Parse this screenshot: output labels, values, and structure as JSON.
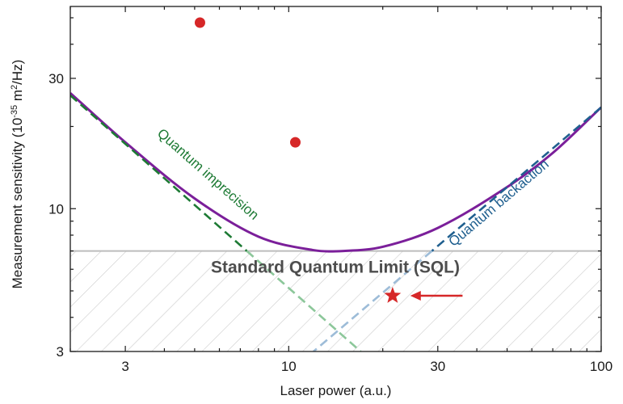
{
  "chart_data": {
    "type": "line",
    "xscale": "log",
    "yscale": "log",
    "xlim": [
      2.0,
      100
    ],
    "ylim": [
      3,
      55
    ],
    "xlabel": "Laser power (a.u.)",
    "ylabel": "Measurement sensitivity (10^-35 m²/Hz)",
    "ylabel_parts": {
      "main": "Measurement sensitivity (10",
      "sup1": "-35",
      "mid": " m",
      "sup2": "2",
      "tail": "/Hz)"
    },
    "x_ticks": [
      {
        "value": 3,
        "label": "3"
      },
      {
        "value": 10,
        "label": "10"
      },
      {
        "value": 30,
        "label": "30"
      },
      {
        "value": 100,
        "label": "100"
      }
    ],
    "y_ticks": [
      {
        "value": 3,
        "label": "3"
      },
      {
        "value": 10,
        "label": "10"
      },
      {
        "value": 30,
        "label": "30"
      }
    ],
    "series": [
      {
        "name": "Total sensitivity",
        "style": "solid",
        "color": "#7b1f9a",
        "x": [
          2.0,
          3.0,
          5.0,
          8.0,
          12.0,
          15.0,
          20.0,
          30.0,
          50.0,
          70.0,
          100.0
        ],
        "y": [
          26.5,
          17.5,
          10.9,
          7.9,
          7.05,
          7.0,
          7.25,
          8.5,
          12.0,
          16.0,
          23.5
        ]
      },
      {
        "name": "Quantum imprecision",
        "style": "dashed",
        "color": "#1d7a34",
        "color_below_sql": "#8cc79a",
        "x": [
          2.0,
          17.0
        ],
        "y": [
          26.0,
          3.0
        ]
      },
      {
        "name": "Quantum backaction",
        "style": "dashed",
        "color": "#1f5f8f",
        "color_below_sql": "#9dbcd8",
        "x": [
          12.0,
          100.0
        ],
        "y": [
          3.0,
          23.5
        ]
      }
    ],
    "points": [
      {
        "name": "data point 1",
        "x": 5.2,
        "y": 48,
        "marker": "circle",
        "color": "#d62728"
      },
      {
        "name": "data point 2",
        "x": 10.5,
        "y": 17.5,
        "marker": "circle",
        "color": "#d62728"
      },
      {
        "name": "star point",
        "x": 21.5,
        "y": 4.8,
        "marker": "star",
        "color": "#d62728"
      }
    ],
    "sql": {
      "y": 7.0,
      "label": "Standard Quantum Limit (SQL)",
      "line_color": "#bdbdbd",
      "hatch_color": "#cccccc"
    },
    "annotations": [
      {
        "text": "Quantum imprecision",
        "color": "#1d7a34",
        "x": 5.4,
        "y": 13.0
      },
      {
        "text": "Quantum backaction",
        "color": "#1f5f8f",
        "x": 48,
        "y": 10.2
      }
    ],
    "arrow": {
      "from_x": 36,
      "to_x": 24.5,
      "y": 4.8,
      "color": "#d62728"
    },
    "grid": false,
    "legend": "none"
  }
}
